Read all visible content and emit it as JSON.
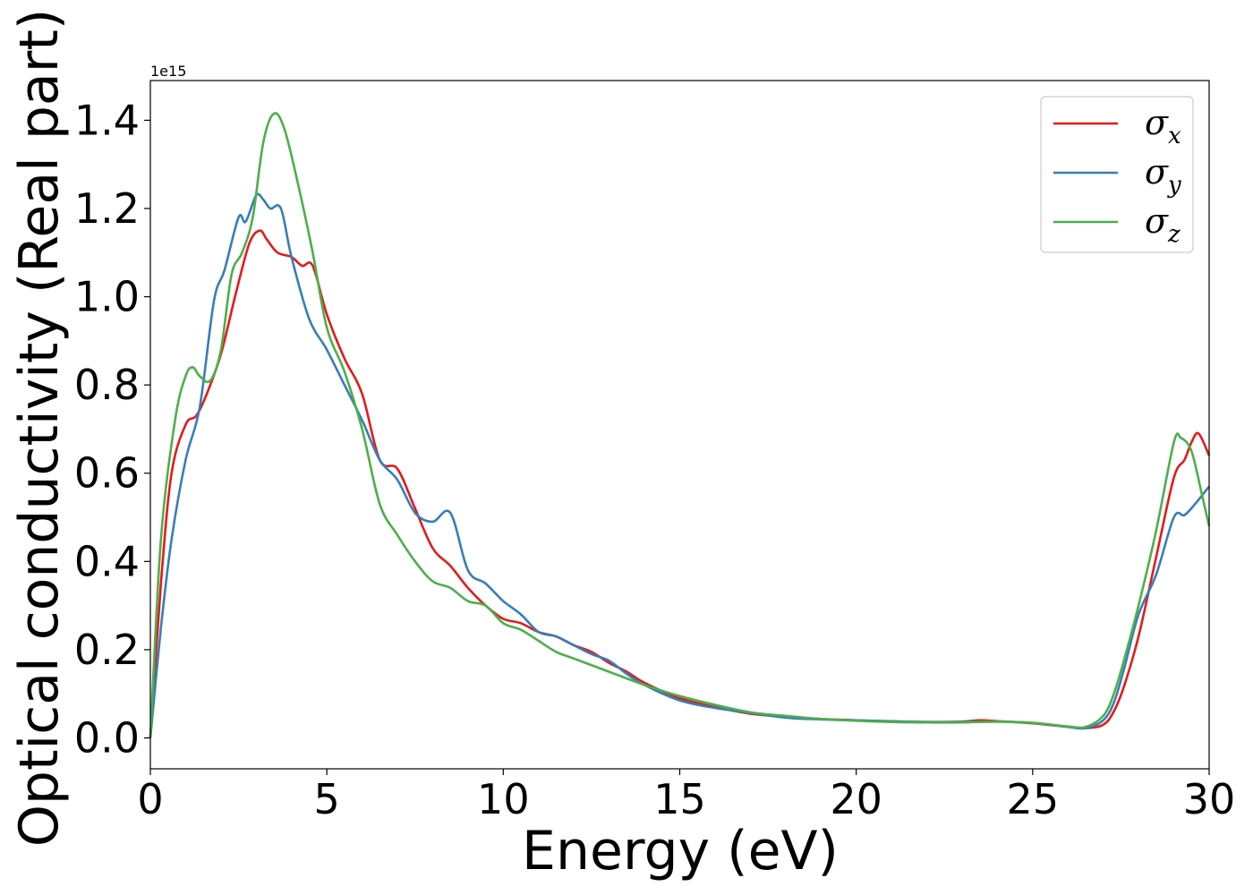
{
  "chart_data": {
    "type": "line",
    "title": "",
    "xlabel": "Energy (eV)",
    "ylabel": "Optical conductivity (Real part)",
    "y_offset_label": "1e15",
    "xlim": [
      0,
      30
    ],
    "ylim": [
      -0.07,
      1.49
    ],
    "xticks": [
      0,
      5,
      10,
      15,
      20,
      25,
      30
    ],
    "xtick_labels": [
      "0",
      "5",
      "10",
      "15",
      "20",
      "25",
      "30"
    ],
    "yticks": [
      0.0,
      0.2,
      0.4,
      0.6,
      0.8,
      1.0,
      1.2,
      1.4
    ],
    "ytick_labels": [
      "0.0",
      "0.2",
      "0.4",
      "0.6",
      "0.8",
      "1.0",
      "1.2",
      "1.4"
    ],
    "grid": false,
    "legend_position": "top-right",
    "series": [
      {
        "name": "σx",
        "symbol": "σ",
        "subscript": "x",
        "color": "#e41a1c",
        "x": [
          0,
          0.3,
          0.6,
          1.0,
          1.3,
          1.6,
          2.0,
          2.4,
          2.8,
          3.1,
          3.3,
          3.6,
          4.0,
          4.3,
          4.6,
          5.0,
          5.5,
          6.0,
          6.5,
          7.0,
          7.5,
          8.0,
          8.5,
          9.0,
          9.5,
          10.0,
          10.5,
          11.0,
          11.5,
          12.0,
          12.5,
          13.0,
          13.5,
          14.0,
          15.0,
          16.0,
          17.0,
          18.0,
          19.0,
          20.0,
          21.0,
          22.0,
          23.0,
          23.5,
          24.0,
          25.0,
          26.0,
          26.5,
          27.0,
          27.3,
          27.6,
          28.0,
          28.5,
          29.0,
          29.3,
          29.5,
          29.7,
          30.0
        ],
        "y": [
          0.0,
          0.35,
          0.6,
          0.71,
          0.73,
          0.78,
          0.87,
          1.0,
          1.12,
          1.15,
          1.13,
          1.1,
          1.09,
          1.07,
          1.07,
          0.96,
          0.86,
          0.78,
          0.63,
          0.61,
          0.52,
          0.43,
          0.39,
          0.34,
          0.3,
          0.27,
          0.26,
          0.24,
          0.23,
          0.21,
          0.195,
          0.17,
          0.15,
          0.125,
          0.09,
          0.07,
          0.055,
          0.048,
          0.043,
          0.04,
          0.037,
          0.036,
          0.037,
          0.04,
          0.038,
          0.033,
          0.025,
          0.022,
          0.03,
          0.06,
          0.12,
          0.23,
          0.41,
          0.59,
          0.63,
          0.67,
          0.69,
          0.64
        ]
      },
      {
        "name": "σy",
        "symbol": "σ",
        "subscript": "y",
        "color": "#377eb8",
        "x": [
          0,
          0.3,
          0.6,
          1.0,
          1.4,
          1.8,
          2.1,
          2.5,
          2.7,
          3.0,
          3.2,
          3.4,
          3.7,
          4.0,
          4.5,
          5.0,
          5.5,
          6.0,
          6.5,
          7.0,
          7.5,
          8.0,
          8.5,
          9.0,
          9.5,
          10.0,
          10.5,
          11.0,
          11.5,
          12.0,
          12.5,
          13.0,
          13.5,
          14.0,
          15.0,
          16.0,
          17.0,
          18.0,
          19.0,
          20.0,
          21.0,
          22.0,
          23.0,
          24.0,
          25.0,
          26.0,
          26.5,
          27.0,
          27.3,
          27.6,
          28.0,
          28.5,
          29.0,
          29.3,
          29.6,
          30.0
        ],
        "y": [
          0.0,
          0.25,
          0.45,
          0.63,
          0.75,
          0.99,
          1.06,
          1.18,
          1.17,
          1.23,
          1.22,
          1.2,
          1.2,
          1.09,
          0.95,
          0.88,
          0.8,
          0.72,
          0.63,
          0.585,
          0.51,
          0.49,
          0.51,
          0.38,
          0.35,
          0.31,
          0.28,
          0.24,
          0.23,
          0.21,
          0.19,
          0.175,
          0.145,
          0.12,
          0.085,
          0.068,
          0.057,
          0.046,
          0.042,
          0.04,
          0.038,
          0.036,
          0.036,
          0.037,
          0.034,
          0.025,
          0.022,
          0.04,
          0.08,
          0.16,
          0.28,
          0.37,
          0.5,
          0.505,
          0.53,
          0.57
        ]
      },
      {
        "name": "σz",
        "symbol": "σ",
        "subscript": "z",
        "color": "#4daf4a",
        "x": [
          0,
          0.3,
          0.7,
          1.0,
          1.2,
          1.4,
          1.7,
          2.0,
          2.3,
          2.6,
          2.9,
          3.2,
          3.5,
          3.8,
          4.2,
          4.6,
          5.0,
          5.5,
          6.0,
          6.5,
          7.0,
          7.5,
          8.0,
          8.5,
          9.0,
          9.5,
          10.0,
          10.5,
          11.0,
          11.5,
          12.0,
          13.0,
          14.0,
          15.0,
          16.0,
          17.0,
          18.0,
          19.0,
          20.0,
          21.0,
          22.0,
          23.0,
          24.0,
          25.0,
          26.0,
          26.5,
          27.0,
          27.3,
          27.6,
          28.0,
          28.5,
          29.0,
          29.2,
          29.5,
          29.8,
          30.0
        ],
        "y": [
          0.0,
          0.45,
          0.72,
          0.82,
          0.84,
          0.82,
          0.81,
          0.88,
          1.05,
          1.1,
          1.18,
          1.35,
          1.415,
          1.38,
          1.25,
          1.1,
          0.93,
          0.83,
          0.7,
          0.53,
          0.46,
          0.4,
          0.355,
          0.34,
          0.31,
          0.3,
          0.26,
          0.245,
          0.22,
          0.195,
          0.18,
          0.15,
          0.12,
          0.095,
          0.075,
          0.058,
          0.05,
          0.043,
          0.039,
          0.036,
          0.035,
          0.035,
          0.037,
          0.034,
          0.026,
          0.025,
          0.05,
          0.1,
          0.18,
          0.3,
          0.47,
          0.67,
          0.68,
          0.65,
          0.55,
          0.48
        ]
      }
    ]
  }
}
